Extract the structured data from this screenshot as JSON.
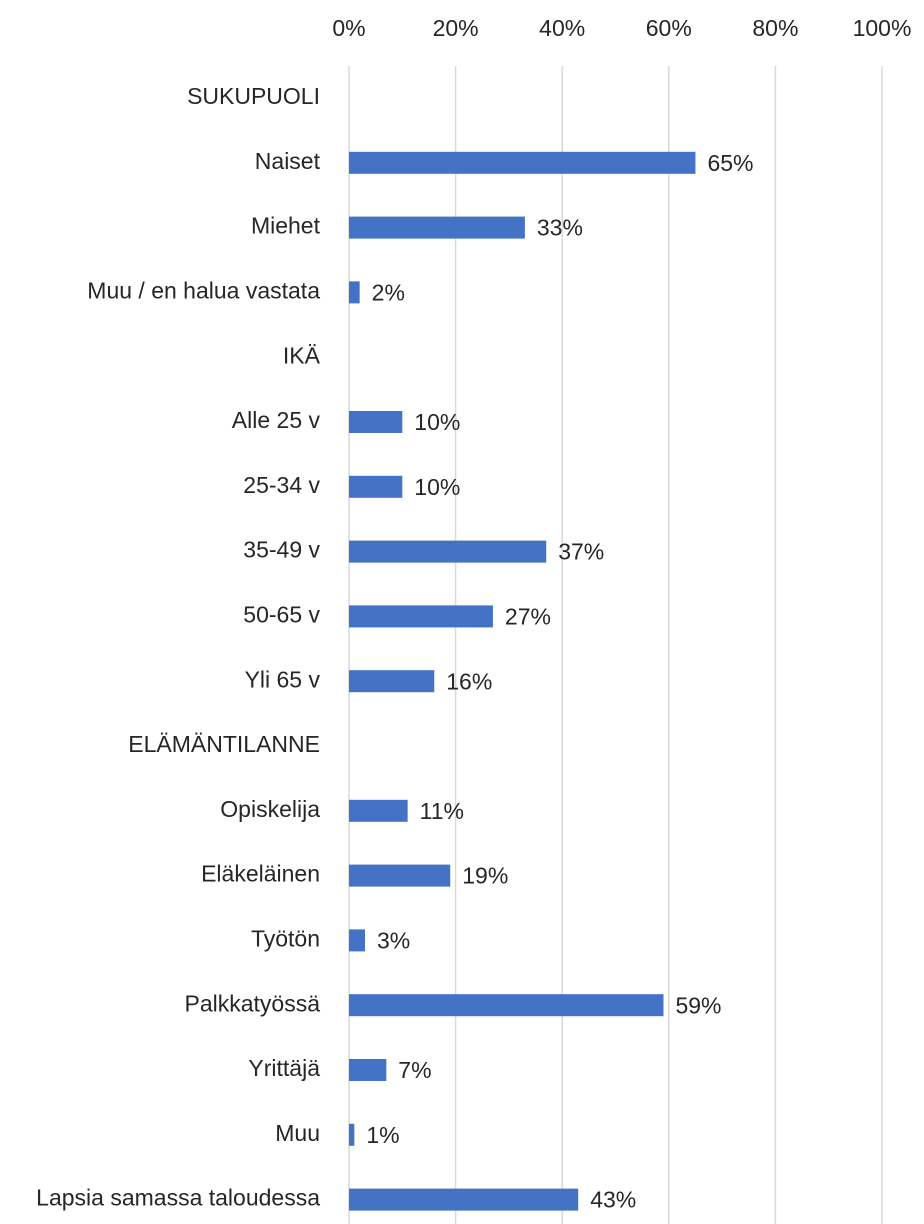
{
  "chart_data": {
    "type": "bar",
    "orientation": "horizontal",
    "categories": [
      "SUKUPUOLI",
      "Naiset",
      "Miehet",
      "Muu / en halua vastata",
      "IKÄ",
      "Alle 25 v",
      "25-34 v",
      "35-49 v",
      "50-65 v",
      "Yli 65 v",
      "ELÄMÄNTILANNE",
      "Opiskelija",
      "Eläkeläinen",
      "Työtön",
      "Palkkatyössä",
      "Yrittäjä",
      "Muu",
      "Lapsia samassa taloudessa"
    ],
    "values": [
      null,
      65,
      33,
      2,
      null,
      10,
      10,
      37,
      27,
      16,
      null,
      11,
      19,
      3,
      59,
      7,
      1,
      43
    ],
    "value_labels": [
      null,
      "65%",
      "33%",
      "2%",
      null,
      "10%",
      "10%",
      "37%",
      "27%",
      "16%",
      null,
      "11%",
      "19%",
      "3%",
      "59%",
      "7%",
      "1%",
      "43%"
    ],
    "color": "#4472c4",
    "xlim": [
      0,
      100
    ],
    "xticks": [
      {
        "value": 0,
        "label": "0%"
      },
      {
        "value": 20,
        "label": "20%"
      },
      {
        "value": 40,
        "label": "40%"
      },
      {
        "value": 60,
        "label": "60%"
      },
      {
        "value": 80,
        "label": "80%"
      },
      {
        "value": 100,
        "label": "100%"
      }
    ],
    "grid": true
  }
}
